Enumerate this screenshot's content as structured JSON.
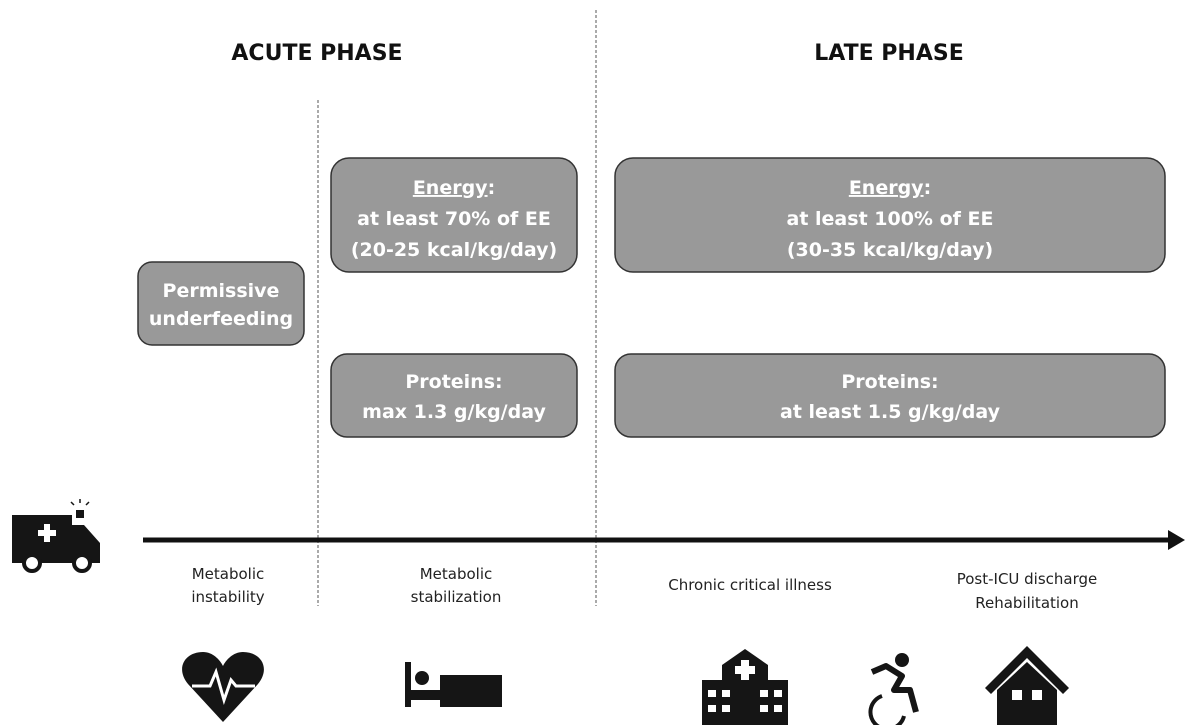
{
  "phases": {
    "acute": "ACUTE PHASE",
    "late": "LATE PHASE"
  },
  "boxes": {
    "permissive": {
      "lines": [
        "Permissive",
        "underfeeding"
      ]
    },
    "acute_energy": {
      "heading": "Energy",
      "heading_suffix": ":",
      "lines": [
        "at least 70% of EE",
        "(20-25 kcal/kg/day)"
      ]
    },
    "acute_proteins": {
      "lines": [
        "Proteins:",
        "max 1.3 g/kg/day"
      ]
    },
    "late_energy": {
      "heading": "Energy",
      "heading_suffix": ":",
      "lines": [
        "at least 100% of EE",
        "(30-35 kcal/kg/day)"
      ]
    },
    "late_proteins": {
      "lines": [
        "Proteins:",
        "at least 1.5 g/kg/day"
      ]
    }
  },
  "stages": [
    {
      "lines": [
        "Metabolic",
        "instability"
      ]
    },
    {
      "lines": [
        "Metabolic",
        "stabilization"
      ]
    },
    {
      "lines": [
        "Chronic critical illness"
      ]
    },
    {
      "lines": [
        "Post-ICU discharge",
        "Rehabilitation"
      ]
    }
  ]
}
